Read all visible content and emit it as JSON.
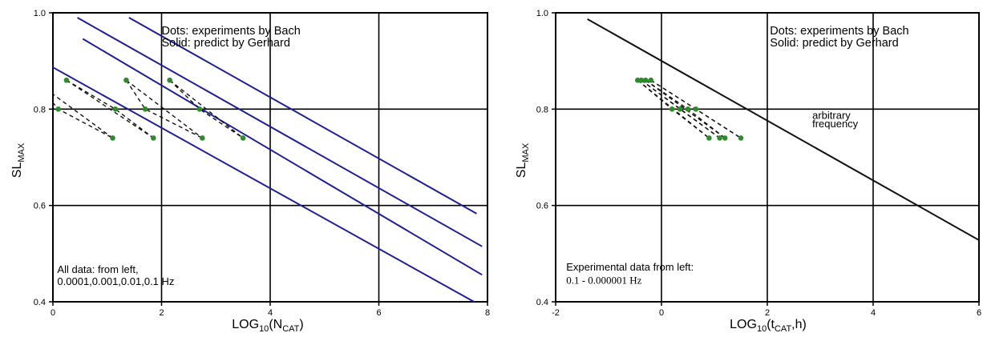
{
  "chart_data": [
    {
      "type": "line",
      "xlabel": {
        "base": "LOG",
        "sub1": "10",
        "mid": "(N",
        "sub2": "CAT",
        "tail": ")"
      },
      "ylabel": {
        "base": "SL",
        "sub": "MAX"
      },
      "xlim": [
        0,
        8
      ],
      "ylim": [
        0.4,
        1.0
      ],
      "x_ticks": [
        0,
        2,
        4,
        6,
        8
      ],
      "y_ticks": [
        0.4,
        0.6,
        0.8,
        1.0
      ],
      "x_tick_labels": [
        "0",
        "2",
        "4",
        "6",
        "8"
      ],
      "y_tick_labels": [
        "0.4",
        "0.6",
        "0.8",
        "1.0"
      ],
      "grid": true,
      "colors": {
        "prediction": "#1f1f8f",
        "experiment": "#2e8b2e",
        "experiment_link": "#111111"
      },
      "annotations": [
        {
          "id": "legend_1",
          "text": "Dots: experiments by Bach",
          "x": 2.0,
          "y": 0.955
        },
        {
          "id": "legend_2",
          "text": "Solid: predict by Gerhard",
          "x": 2.0,
          "y": 0.93
        },
        {
          "id": "note_1",
          "text": "All data: from left,",
          "x": 0.08,
          "y": 0.46
        },
        {
          "id": "note_2",
          "text": "0.0001,0.001,0.01,0.1 Hz",
          "x": 0.08,
          "y": 0.435
        }
      ],
      "series": [
        {
          "style": "prediction",
          "x": [
            -0.1,
            7.8
          ],
          "y": [
            0.893,
            0.397
          ]
        },
        {
          "style": "prediction",
          "x": [
            0.55,
            7.9
          ],
          "y": [
            0.946,
            0.456
          ]
        },
        {
          "style": "prediction",
          "x": [
            0.45,
            7.9
          ],
          "y": [
            0.99,
            0.515
          ]
        },
        {
          "style": "prediction",
          "x": [
            1.4,
            7.8
          ],
          "y": [
            0.99,
            0.583
          ]
        },
        {
          "style": "experiment",
          "x": [
            -0.35,
            0.1,
            1.1
          ],
          "y": [
            0.86,
            0.8,
            0.74
          ]
        },
        {
          "style": "experiment",
          "x": [
            0.25,
            1.15,
            1.85
          ],
          "y": [
            0.86,
            0.8,
            0.74
          ]
        },
        {
          "style": "experiment",
          "x": [
            1.35,
            1.7,
            2.75
          ],
          "y": [
            0.86,
            0.8,
            0.74
          ]
        },
        {
          "style": "experiment",
          "x": [
            2.15,
            2.7,
            3.5
          ],
          "y": [
            0.86,
            0.8,
            0.74
          ]
        }
      ]
    },
    {
      "type": "line",
      "xlabel": {
        "base": "LOG",
        "sub1": "10",
        "mid": "(t",
        "sub2": "CAT",
        "tail": ",h)"
      },
      "ylabel": {
        "base": "SL",
        "sub": "MAX"
      },
      "xlim": [
        -2,
        6
      ],
      "ylim": [
        0.4,
        1.0
      ],
      "x_ticks": [
        -2,
        0,
        2,
        4,
        6
      ],
      "y_ticks": [
        0.4,
        0.6,
        0.8,
        1.0
      ],
      "x_tick_labels": [
        "-2",
        "0",
        "2",
        "4",
        "6"
      ],
      "y_tick_labels": [
        "0.4",
        "0.6",
        "0.8",
        "1.0"
      ],
      "grid": true,
      "colors": {
        "prediction": "#111111",
        "experiment": "#2e8b2e",
        "experiment_link": "#111111"
      },
      "annotations": [
        {
          "id": "legend_1",
          "text": "Dots: experiments by Bach",
          "x": 2.05,
          "y": 0.955
        },
        {
          "id": "legend_2",
          "text": "Solid: predict by Gerhard",
          "x": 2.05,
          "y": 0.93
        },
        {
          "id": "arb_1",
          "text": "arbitrary",
          "x": 2.85,
          "y": 0.78
        },
        {
          "id": "arb_2",
          "text": "frequency",
          "x": 2.85,
          "y": 0.762
        },
        {
          "id": "note_1",
          "text": "Experimental data from left:",
          "x": -1.8,
          "y": 0.465
        },
        {
          "id": "note_2",
          "text": "0.1 - 0.000001 Hz",
          "x": -1.8,
          "y": 0.437
        }
      ],
      "series": [
        {
          "style": "prediction",
          "x": [
            -1.4,
            6.0
          ],
          "y": [
            0.987,
            0.528
          ]
        },
        {
          "style": "experiment",
          "x": [
            -0.45,
            0.2,
            0.9
          ],
          "y": [
            0.86,
            0.8,
            0.74
          ]
        },
        {
          "style": "experiment",
          "x": [
            -0.38,
            0.35,
            1.1
          ],
          "y": [
            0.86,
            0.8,
            0.74
          ]
        },
        {
          "style": "experiment",
          "x": [
            -0.3,
            0.5,
            1.2
          ],
          "y": [
            0.86,
            0.8,
            0.74
          ]
        },
        {
          "style": "experiment",
          "x": [
            -0.2,
            0.65,
            1.5
          ],
          "y": [
            0.86,
            0.8,
            0.74
          ]
        }
      ]
    }
  ]
}
